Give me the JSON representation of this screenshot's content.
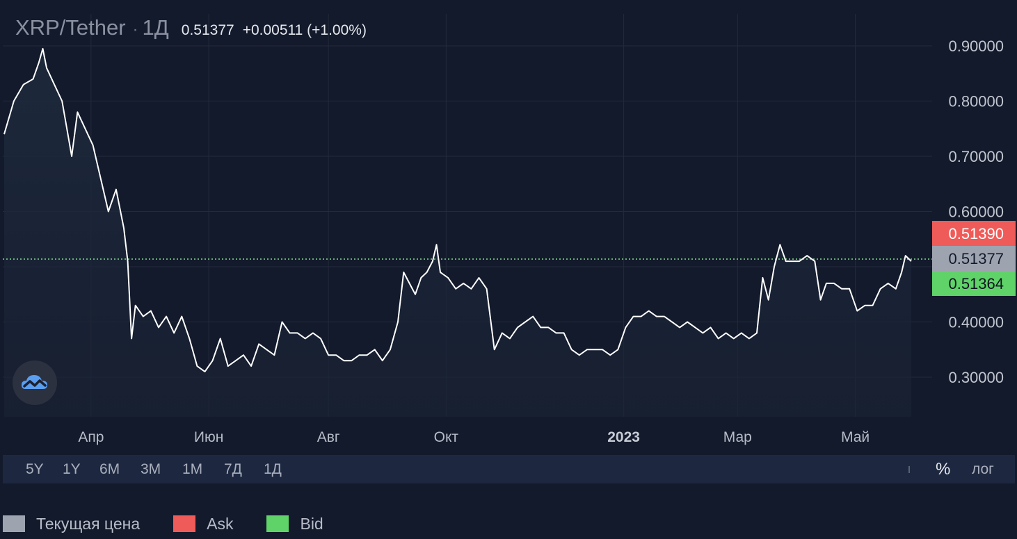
{
  "header": {
    "symbol": "XRP/Tether",
    "separator": "·",
    "interval": "1Д",
    "price": "0.51377",
    "change": "+0.00511 (+1.00%)"
  },
  "toolbar": {
    "ranges": [
      "5Y",
      "1Y",
      "6M",
      "3M",
      "1M",
      "7Д",
      "1Д"
    ],
    "percent_label": "%",
    "log_label": "лог"
  },
  "legend": [
    {
      "label": "Текущая цена",
      "color": "#9ea3b0"
    },
    {
      "label": "Ask",
      "color": "#ef5b58"
    },
    {
      "label": "Bid",
      "color": "#5fd368"
    }
  ],
  "logo": {
    "icon": "cloud-chart-logo-icon"
  },
  "chart_data": {
    "type": "line",
    "y_ticks": [
      "0.90000",
      "0.80000",
      "0.70000",
      "0.60000",
      "0.40000",
      "0.30000"
    ],
    "y_tick_values": [
      0.9,
      0.8,
      0.7,
      0.6,
      0.4,
      0.3
    ],
    "ylim": [
      0.245,
      0.955
    ],
    "x_ticks": [
      {
        "label": "Апр",
        "index": 45,
        "bold": false
      },
      {
        "label": "Июн",
        "index": 106,
        "bold": false
      },
      {
        "label": "Авг",
        "index": 168,
        "bold": false
      },
      {
        "label": "Окт",
        "index": 229,
        "bold": false
      },
      {
        "label": "2023",
        "index": 321,
        "bold": true
      },
      {
        "label": "Мар",
        "index": 380,
        "bold": false
      },
      {
        "label": "Май",
        "index": 441,
        "bold": false
      }
    ],
    "x_range": [
      0,
      470
    ],
    "current_price": {
      "label": "0.51377",
      "value": 0.51377,
      "color": "#9ea3b0"
    },
    "ask": {
      "label": "0.51390",
      "value": 0.5139,
      "color": "#ef5b58"
    },
    "bid": {
      "label": "0.51364",
      "value": 0.51364,
      "color": "#5fd368"
    },
    "series": [
      {
        "line_color": "#ffffff",
        "points": [
          [
            0,
            0.74
          ],
          [
            5,
            0.8
          ],
          [
            10,
            0.83
          ],
          [
            15,
            0.84
          ],
          [
            18,
            0.87
          ],
          [
            20,
            0.895
          ],
          [
            22,
            0.86
          ],
          [
            26,
            0.83
          ],
          [
            30,
            0.8
          ],
          [
            35,
            0.7
          ],
          [
            38,
            0.78
          ],
          [
            42,
            0.75
          ],
          [
            46,
            0.72
          ],
          [
            50,
            0.66
          ],
          [
            54,
            0.6
          ],
          [
            58,
            0.64
          ],
          [
            62,
            0.57
          ],
          [
            64,
            0.51
          ],
          [
            66,
            0.37
          ],
          [
            68,
            0.43
          ],
          [
            72,
            0.41
          ],
          [
            76,
            0.42
          ],
          [
            80,
            0.39
          ],
          [
            84,
            0.41
          ],
          [
            88,
            0.38
          ],
          [
            92,
            0.41
          ],
          [
            96,
            0.37
          ],
          [
            100,
            0.32
          ],
          [
            104,
            0.31
          ],
          [
            108,
            0.33
          ],
          [
            112,
            0.37
          ],
          [
            116,
            0.32
          ],
          [
            120,
            0.33
          ],
          [
            124,
            0.34
          ],
          [
            128,
            0.32
          ],
          [
            132,
            0.36
          ],
          [
            136,
            0.35
          ],
          [
            140,
            0.34
          ],
          [
            144,
            0.4
          ],
          [
            148,
            0.38
          ],
          [
            152,
            0.38
          ],
          [
            156,
            0.37
          ],
          [
            160,
            0.38
          ],
          [
            164,
            0.37
          ],
          [
            168,
            0.34
          ],
          [
            172,
            0.34
          ],
          [
            176,
            0.33
          ],
          [
            180,
            0.33
          ],
          [
            184,
            0.34
          ],
          [
            188,
            0.34
          ],
          [
            192,
            0.35
          ],
          [
            196,
            0.33
          ],
          [
            200,
            0.35
          ],
          [
            204,
            0.4
          ],
          [
            207,
            0.49
          ],
          [
            210,
            0.47
          ],
          [
            213,
            0.45
          ],
          [
            216,
            0.48
          ],
          [
            219,
            0.49
          ],
          [
            222,
            0.51
          ],
          [
            224,
            0.54
          ],
          [
            226,
            0.49
          ],
          [
            230,
            0.48
          ],
          [
            234,
            0.46
          ],
          [
            238,
            0.47
          ],
          [
            242,
            0.46
          ],
          [
            246,
            0.48
          ],
          [
            250,
            0.46
          ],
          [
            254,
            0.35
          ],
          [
            258,
            0.38
          ],
          [
            262,
            0.37
          ],
          [
            266,
            0.39
          ],
          [
            270,
            0.4
          ],
          [
            274,
            0.41
          ],
          [
            278,
            0.39
          ],
          [
            282,
            0.39
          ],
          [
            286,
            0.38
          ],
          [
            290,
            0.38
          ],
          [
            294,
            0.35
          ],
          [
            298,
            0.34
          ],
          [
            302,
            0.35
          ],
          [
            306,
            0.35
          ],
          [
            310,
            0.35
          ],
          [
            314,
            0.34
          ],
          [
            318,
            0.35
          ],
          [
            322,
            0.39
          ],
          [
            326,
            0.41
          ],
          [
            330,
            0.41
          ],
          [
            334,
            0.42
          ],
          [
            338,
            0.41
          ],
          [
            342,
            0.41
          ],
          [
            346,
            0.4
          ],
          [
            350,
            0.39
          ],
          [
            354,
            0.4
          ],
          [
            358,
            0.39
          ],
          [
            362,
            0.38
          ],
          [
            366,
            0.39
          ],
          [
            370,
            0.37
          ],
          [
            374,
            0.38
          ],
          [
            378,
            0.37
          ],
          [
            382,
            0.38
          ],
          [
            386,
            0.37
          ],
          [
            390,
            0.38
          ],
          [
            393,
            0.48
          ],
          [
            396,
            0.44
          ],
          [
            399,
            0.5
          ],
          [
            402,
            0.54
          ],
          [
            405,
            0.51
          ],
          [
            408,
            0.51
          ],
          [
            412,
            0.51
          ],
          [
            416,
            0.52
          ],
          [
            420,
            0.51
          ],
          [
            423,
            0.44
          ],
          [
            426,
            0.47
          ],
          [
            430,
            0.47
          ],
          [
            434,
            0.46
          ],
          [
            438,
            0.46
          ],
          [
            442,
            0.42
          ],
          [
            446,
            0.43
          ],
          [
            450,
            0.43
          ],
          [
            454,
            0.46
          ],
          [
            458,
            0.47
          ],
          [
            462,
            0.46
          ],
          [
            465,
            0.49
          ],
          [
            467,
            0.52
          ],
          [
            470,
            0.51
          ]
        ]
      }
    ]
  }
}
